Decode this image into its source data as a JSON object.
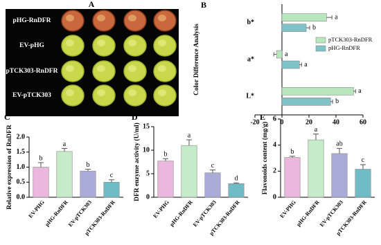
{
  "photo_panel": {
    "panel_label": "A",
    "rows": [
      "pHG-RnDFR",
      "EV-pHG",
      "pTCK303-RnDFR",
      "EV-pTCK303"
    ]
  },
  "chart_data": [
    {
      "type": "bar",
      "orientation": "horizontal",
      "panel_label": "B",
      "ylabel": "Color Difference Analysis",
      "categories": [
        "b*",
        "a*",
        "L*"
      ],
      "series": [
        {
          "name": "pTCK303-RnDFR",
          "color": "#b8e6bd",
          "values": [
            33,
            -4,
            53
          ],
          "errors": [
            4,
            2,
            1.5
          ],
          "letters": [
            "a",
            "a",
            "a"
          ]
        },
        {
          "name": "pHG-RnDFR",
          "color": "#7fc3c9",
          "values": [
            18,
            13,
            36
          ],
          "errors": [
            2.5,
            1.5,
            1.5
          ],
          "letters": [
            "b",
            "a",
            "b"
          ]
        }
      ],
      "xlim": [
        -20,
        60
      ],
      "xticks": [
        -20,
        0,
        20,
        40,
        60
      ],
      "legend": "center right"
    },
    {
      "type": "bar",
      "panel_label": "C",
      "ylabel": "Relative expression of RnDFR",
      "categories": [
        "EV-PHG",
        "pHG-RnDFR",
        "EV-pTCK303",
        "pTCK303-RnDFR"
      ],
      "values": [
        1.0,
        1.52,
        0.87,
        0.5
      ],
      "errors": [
        0.15,
        0.1,
        0.06,
        0.08
      ],
      "letters": [
        "b",
        "a",
        "b",
        "c"
      ],
      "colors": [
        "#e9b8dc",
        "#c6ebc8",
        "#ababd8",
        "#70bcc6"
      ],
      "ylim": [
        0,
        2
      ],
      "yticks": [
        {
          "value": 0,
          "label": "0.0"
        },
        {
          "value": 0.5,
          "label": "0.5"
        },
        {
          "value": 1,
          "label": "1.0"
        },
        {
          "value": 1.5,
          "label": "1.5"
        },
        {
          "value": 2,
          "label": "2.0"
        }
      ]
    },
    {
      "type": "bar",
      "panel_label": "D",
      "ylabel": "DFR enzyme activity (U/ml)",
      "categories": [
        "EV-PHG",
        "pHG-RnDFR",
        "EV-pTCK303",
        "pTCK303-RnDFR"
      ],
      "values": [
        7.7,
        11,
        5.2,
        2.9
      ],
      "errors": [
        0.5,
        1.2,
        0.6,
        0.15
      ],
      "letters": [
        "b",
        "a",
        "c",
        "d"
      ],
      "colors": [
        "#e9b8dc",
        "#c6ebc8",
        "#ababd8",
        "#70bcc6"
      ],
      "ylim": [
        0,
        15
      ],
      "yticks": [
        0,
        5,
        10,
        15
      ]
    },
    {
      "type": "bar",
      "panel_label": "E",
      "ylabel": "Flavonoids content (mg/g)",
      "categories": [
        "EV-PHG",
        "pHG-RnDFR",
        "EV-pTCK303",
        "pTCK303-RnDFR"
      ],
      "values": [
        3.05,
        4.4,
        3.35,
        2.15
      ],
      "errors": [
        0.1,
        0.45,
        0.4,
        0.35
      ],
      "letters": [
        "b",
        "a",
        "ab",
        "c"
      ],
      "colors": [
        "#e9b8dc",
        "#c6ebc8",
        "#ababd8",
        "#70bcc6"
      ],
      "ylim": [
        0,
        6
      ],
      "yticks": [
        0,
        2,
        4,
        6
      ]
    }
  ]
}
